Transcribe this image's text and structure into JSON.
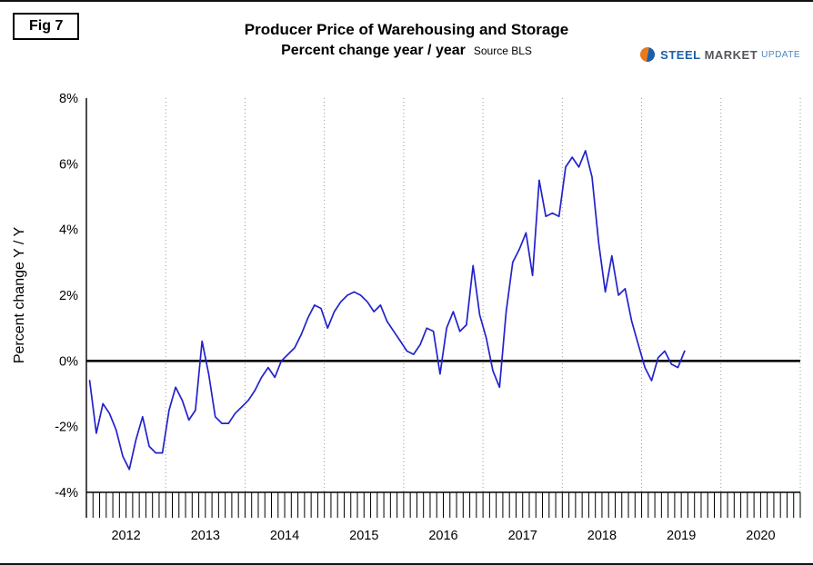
{
  "figure": {
    "fig_label": "Fig 7",
    "title": "Producer Price of Warehousing and Storage",
    "subtitle": "Percent change year / year",
    "source_note": "Source BLS",
    "logo": {
      "word1": "STEEL",
      "word2": "MARKET",
      "word3": "UPDATE"
    }
  },
  "chart_data": {
    "type": "line",
    "title": "Producer Price of Warehousing and Storage",
    "subtitle": "Percent change year / year",
    "source": "Source BLS",
    "ylabel": "Percent change Y / Y",
    "ylim": [
      -4,
      8
    ],
    "ytick_step": 2,
    "ytick_suffix": "%",
    "x_axis": {
      "year_labels": [
        "2012",
        "2013",
        "2014",
        "2015",
        "2016",
        "2017",
        "2018",
        "2019",
        "2020"
      ],
      "minor_ticks": "monthly",
      "range": [
        "2012-01",
        "2020-12"
      ]
    },
    "grid": {
      "vertical_year_lines": "dotted",
      "horizontal_lines": false,
      "zero_line": "bold-black"
    },
    "line_color": "#2222cc",
    "series": [
      {
        "name": "PPI Warehousing and Storage, percent change Y/Y",
        "color": "#2222cc",
        "start": "2012-01",
        "end": "2019-07",
        "frequency": "monthly",
        "values": [
          -0.6,
          -2.2,
          -1.3,
          -1.6,
          -2.1,
          -2.9,
          -3.3,
          -2.4,
          -1.7,
          -2.6,
          -2.8,
          -2.8,
          -1.5,
          -0.8,
          -1.2,
          -1.8,
          -1.5,
          0.6,
          -0.4,
          -1.7,
          -1.9,
          -1.9,
          -1.6,
          -1.4,
          -1.2,
          -0.9,
          -0.5,
          -0.2,
          -0.5,
          0.0,
          0.2,
          0.4,
          0.8,
          1.3,
          1.7,
          1.6,
          1.0,
          1.5,
          1.8,
          2.0,
          2.1,
          2.0,
          1.8,
          1.5,
          1.7,
          1.2,
          0.9,
          0.6,
          0.3,
          0.2,
          0.5,
          1.0,
          0.9,
          -0.4,
          1.0,
          1.5,
          0.9,
          1.1,
          2.9,
          1.4,
          0.7,
          -0.3,
          -0.8,
          1.5,
          3.0,
          3.4,
          3.9,
          2.6,
          5.5,
          4.4,
          4.5,
          4.4,
          5.9,
          6.2,
          5.9,
          6.4,
          5.6,
          3.6,
          2.1,
          3.2,
          2.0,
          2.2,
          1.2,
          0.5,
          -0.2,
          -0.6,
          0.1,
          0.3,
          -0.1,
          -0.2,
          0.3
        ]
      }
    ]
  }
}
